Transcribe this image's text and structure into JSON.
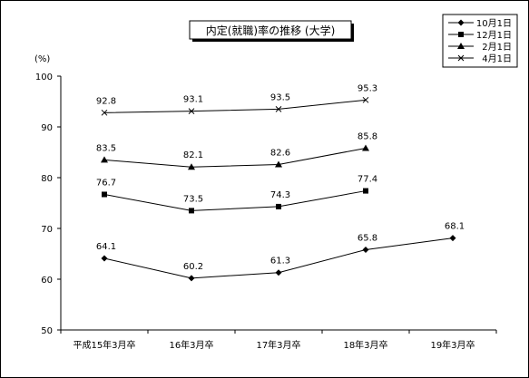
{
  "chart_data": {
    "type": "line",
    "title": "内定(就職)率の推移 (大学)",
    "ylabel": "(%)",
    "xlabel": "",
    "ylim": [
      50,
      100
    ],
    "yticks": [
      50,
      60,
      70,
      80,
      90,
      100
    ],
    "categories": [
      "平成15年3月卒",
      "16年3月卒",
      "17年3月卒",
      "18年3月卒",
      "19年3月卒"
    ],
    "grid": false,
    "legend_position": "top-right",
    "series": [
      {
        "name": "10月1日",
        "marker": "diamond",
        "values": [
          64.1,
          60.2,
          61.3,
          65.8,
          68.1
        ]
      },
      {
        "name": "12月1日",
        "marker": "square",
        "values": [
          76.7,
          73.5,
          74.3,
          77.4,
          null
        ]
      },
      {
        "name": "2月1日",
        "marker": "triangle",
        "values": [
          83.5,
          82.1,
          82.6,
          85.8,
          null
        ]
      },
      {
        "name": "4月1日",
        "marker": "x",
        "values": [
          92.8,
          93.1,
          93.5,
          95.3,
          null
        ]
      }
    ],
    "data_label_text": [
      [
        "64.1",
        "60.2",
        "61.3",
        "65.8",
        "68.1"
      ],
      [
        "76.7",
        "73.5",
        "74.3",
        "77.4",
        ""
      ],
      [
        "83.5",
        "82.1",
        "82.6",
        "85.8",
        ""
      ],
      [
        "92.8",
        "93.1",
        "93.5",
        "95.3",
        ""
      ]
    ],
    "colors": {
      "line": "#000000",
      "background": "#ffffff"
    }
  }
}
